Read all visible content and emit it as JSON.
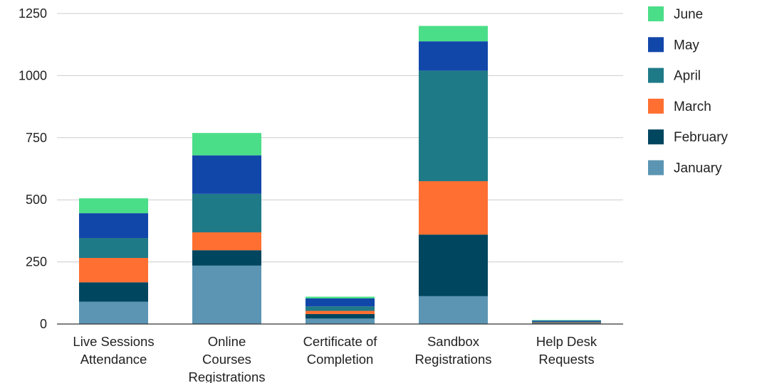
{
  "chart_data": {
    "type": "bar",
    "stacked": true,
    "title": "",
    "xlabel": "",
    "ylabel": "",
    "ylim": [
      0,
      1250
    ],
    "yticks": [
      0,
      250,
      500,
      750,
      1000,
      1250
    ],
    "grid": true,
    "legend_position": "right",
    "categories": [
      [
        "Live Sessions",
        "Attendance"
      ],
      [
        "Online",
        "Courses",
        "Registrations"
      ],
      [
        "Certificate of",
        "Completion"
      ],
      [
        "Sandbox",
        "Registrations"
      ],
      [
        "Help Desk",
        "Requests"
      ]
    ],
    "series": [
      {
        "name": "January",
        "color": "#5b95b3",
        "values": [
          90,
          235,
          22,
          112,
          3
        ]
      },
      {
        "name": "February",
        "color": "#00465f",
        "values": [
          78,
          62,
          18,
          248,
          2
        ]
      },
      {
        "name": "March",
        "color": "#ff6f31",
        "values": [
          98,
          72,
          13,
          215,
          2
        ]
      },
      {
        "name": "April",
        "color": "#1f7a88",
        "values": [
          80,
          155,
          18,
          445,
          3
        ]
      },
      {
        "name": "May",
        "color": "#1247aa",
        "values": [
          100,
          155,
          32,
          118,
          4
        ]
      },
      {
        "name": "June",
        "color": "#4ade88",
        "values": [
          60,
          90,
          7,
          62,
          2
        ]
      }
    ]
  }
}
